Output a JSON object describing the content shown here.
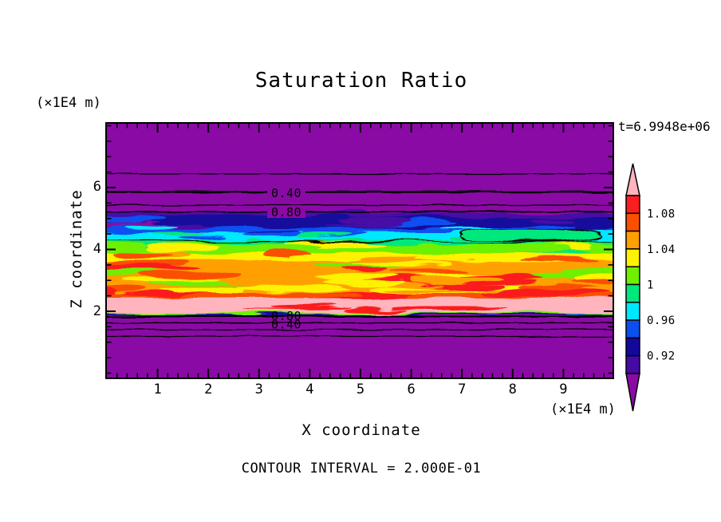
{
  "title": "Saturation Ratio",
  "header": {
    "z_axis_unit": "(×1E4 m)",
    "time_label": "t=6.9948e+06"
  },
  "x_axis": {
    "label": "X coordinate",
    "unit": "(×1E4 m)",
    "ticks": [
      "1",
      "2",
      "3",
      "4",
      "5",
      "6",
      "7",
      "8",
      "9"
    ]
  },
  "z_axis": {
    "label": "Z coordinate",
    "ticks": [
      "6",
      "4",
      "2"
    ]
  },
  "footer": {
    "contour_interval_label": "CONTOUR INTERVAL = 2.000E-01"
  },
  "contour_labels": {
    "top_first": "0.40",
    "top_second": "0.80",
    "bottom_first": "0.80",
    "bottom_second": "0.40"
  },
  "colorbar": {
    "tick_labels": [
      {
        "text": "1.08",
        "boundary_index": 1
      },
      {
        "text": "1.04",
        "boundary_index": 3
      },
      {
        "text": "1",
        "boundary_index": 5
      },
      {
        "text": "0.96",
        "boundary_index": 7
      },
      {
        "text": "0.92",
        "boundary_index": 9
      }
    ],
    "segment_colors_top_to_bottom": [
      "#FA1E1E",
      "#FA5000",
      "#FFA000",
      "#FFF200",
      "#6EF000",
      "#00E87D",
      "#00E8FF",
      "#0A50F0",
      "#14089C",
      "#460AA5"
    ],
    "above_max_color": "#FFB4BE",
    "below_min_color": "#8A0AA5"
  },
  "palette": {
    "pink": "#FFB4BE",
    "red": "#FA1E1E",
    "orange_red": "#FA5000",
    "orange": "#FFA000",
    "yellow": "#FFF200",
    "chartreuse": "#6EF000",
    "green": "#00E87D",
    "cyan": "#00E8FF",
    "blue": "#0A50F0",
    "navy": "#14089C",
    "indigo": "#460AA5",
    "purple": "#8A0AA5",
    "line": "#000000"
  },
  "chart_data": {
    "type": "heatmap",
    "subtype": "filled-contour-plot",
    "title": "Saturation Ratio",
    "xlabel": "X coordinate",
    "ylabel": "Z coordinate",
    "x_unit": "(×1E4 m)",
    "y_unit": "(×1E4 m)",
    "xlim": [
      0,
      10
    ],
    "ylim": [
      0,
      8.2
    ],
    "x_ticks": [
      1,
      2,
      3,
      4,
      5,
      6,
      7,
      8,
      9
    ],
    "y_ticks": [
      2,
      4,
      6
    ],
    "time_annotation": "t=6.9948e+06",
    "contour_interval": 0.2,
    "colorbar_tick_values": [
      1.08,
      1.04,
      1.0,
      0.96,
      0.92
    ],
    "colorbar_levels": [
      {
        "range": "> 1.10",
        "color": "#FFB4BE"
      },
      {
        "range": "1.08 - 1.10",
        "color": "#FA1E1E"
      },
      {
        "range": "1.06 - 1.08",
        "color": "#FA5000"
      },
      {
        "range": "1.04 - 1.06",
        "color": "#FFA000"
      },
      {
        "range": "1.02 - 1.04",
        "color": "#FFF200"
      },
      {
        "range": "1.00 - 1.02",
        "color": "#6EF000"
      },
      {
        "range": "0.98 - 1.00",
        "color": "#00E87D"
      },
      {
        "range": "0.96 - 0.98",
        "color": "#00E8FF"
      },
      {
        "range": "0.94 - 0.96",
        "color": "#0A50F0"
      },
      {
        "range": "0.92 - 0.94",
        "color": "#14089C"
      },
      {
        "range": "0.90 - 0.92",
        "color": "#460AA5"
      },
      {
        "range": "< 0.90",
        "color": "#8A0AA5"
      }
    ],
    "labeled_contour_lines": [
      {
        "value": 0.4,
        "z": 5.9
      },
      {
        "value": 0.8,
        "z": 5.2
      },
      {
        "value": 0.8,
        "z": 1.85
      },
      {
        "value": 0.4,
        "z": 1.6
      }
    ],
    "field_bands": [
      {
        "z_range": [
          5.0,
          8.2
        ],
        "saturation": "< 0.90",
        "description": "uniform purple background with faint contour lines at z≈6.4, 5.9, 5.4, 5.2"
      },
      {
        "z_range": [
          4.55,
          5.0
        ],
        "saturation": "0.90 - 0.96",
        "description": "navy and royal-blue streaky band"
      },
      {
        "z_range": [
          4.3,
          4.55
        ],
        "saturation": "0.96 - 1.00",
        "description": "cyan and green band; 1.0 contour with closed loop island at x≈7-10"
      },
      {
        "z_range": [
          2.5,
          4.3
        ],
        "saturation": "1.02 - 1.10",
        "description": "wide mottled yellow/orange/red band"
      },
      {
        "z_range": [
          1.95,
          2.5
        ],
        "saturation": "> 1.10",
        "description": "pink band with red streaks"
      },
      {
        "z_range": [
          0,
          1.95
        ],
        "saturation": "< 0.90",
        "description": "uniform purple background with contour lines at z≈1.85, 1.65, 1.4, 1.2"
      }
    ]
  }
}
